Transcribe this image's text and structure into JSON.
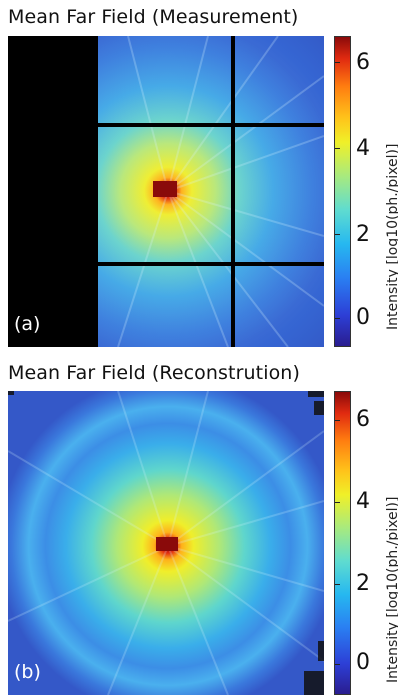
{
  "panels": [
    {
      "title": "Mean Far Field (Measurement)",
      "label": "(a)",
      "colorbar_label": "Intensity [log10(ph./pixel)]",
      "ticks": [
        "0",
        "2",
        "4",
        "6"
      ]
    },
    {
      "title": "Mean Far Field (Reconstrution)",
      "label": "(b)",
      "colorbar_label": "Intensity [log10(ph./pixel)]",
      "ticks": [
        "0",
        "2",
        "4",
        "6"
      ]
    }
  ],
  "colormap": [
    "#2a1d8f",
    "#2a7ff2",
    "#5fdcd0",
    "#f0f028",
    "#ff7d10",
    "#8a0a0a"
  ]
}
